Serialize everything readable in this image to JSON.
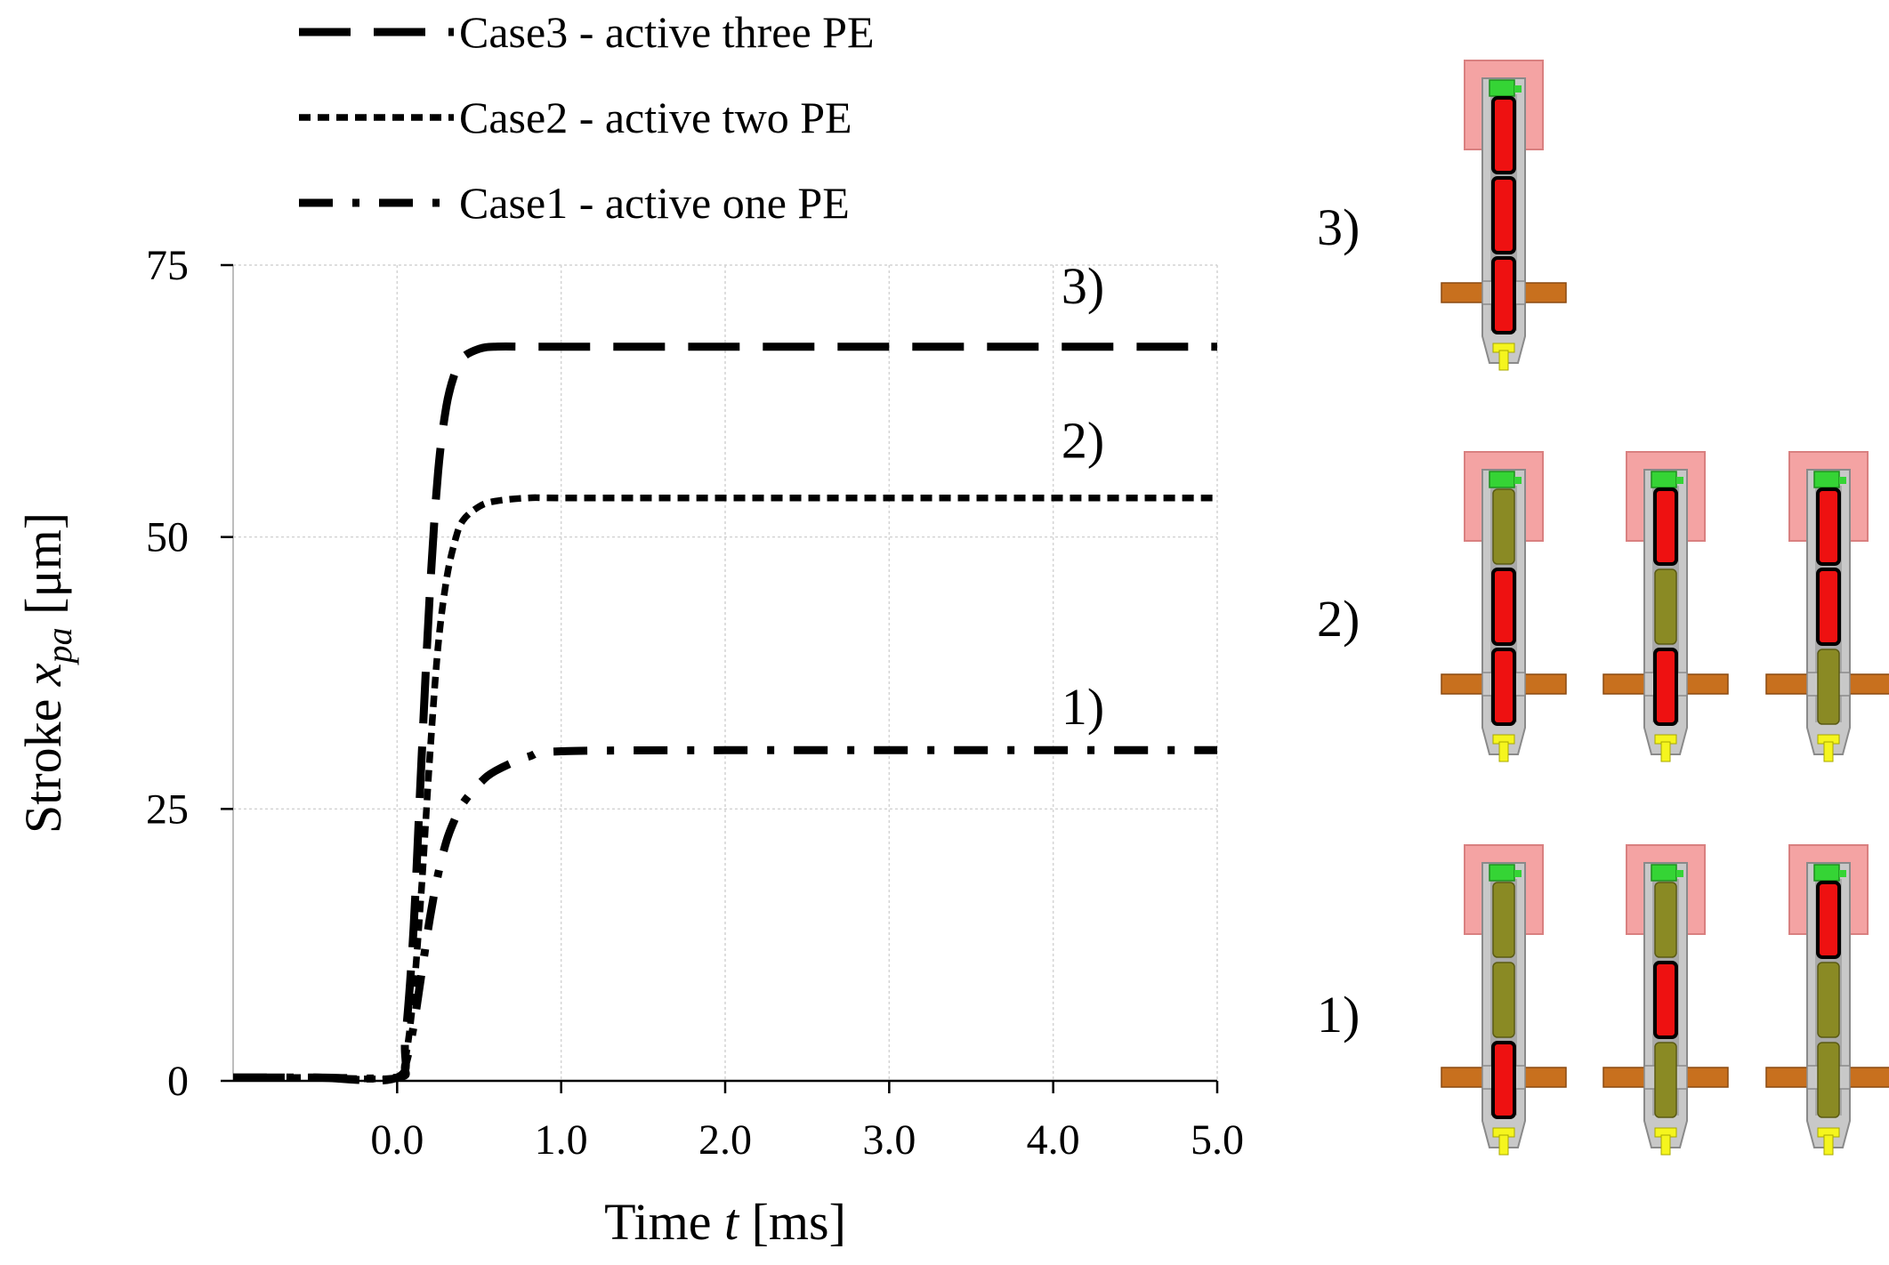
{
  "chart_data": {
    "type": "line",
    "title": "",
    "xlabel": "Time t [ms]",
    "ylabel": "Stroke x_pa [μm]",
    "xlabel_parts": [
      "Time ",
      "t",
      " [ms]"
    ],
    "ylabel_parts": [
      "Stroke ",
      "x",
      "pa",
      " [μm]"
    ],
    "xlim": [
      -1.0,
      5.0
    ],
    "ylim": [
      0,
      75
    ],
    "xticks": [
      {
        "value": 0.0,
        "label": "0.0"
      },
      {
        "value": 1.0,
        "label": "1.0"
      },
      {
        "value": 2.0,
        "label": "2.0"
      },
      {
        "value": 3.0,
        "label": "3.0"
      },
      {
        "value": 4.0,
        "label": "4.0"
      },
      {
        "value": 5.0,
        "label": "5.0"
      }
    ],
    "yticks": [
      {
        "value": 0,
        "label": "0"
      },
      {
        "value": 25,
        "label": "25"
      },
      {
        "value": 50,
        "label": "50"
      },
      {
        "value": 75,
        "label": "75"
      }
    ],
    "grid": true,
    "legend_position": "top",
    "series": [
      {
        "name": "Case3 - active three PE",
        "style": "long-dash",
        "curve_label": "3)",
        "label_at": [
          4.05,
          71.5
        ],
        "x": [
          -1.0,
          -0.5,
          0.0,
          0.05,
          0.1,
          0.15,
          0.2,
          0.25,
          0.3,
          0.35,
          0.4,
          0.5,
          0.6,
          0.8,
          1.0,
          2.0,
          3.0,
          4.0,
          5.0
        ],
        "y": [
          0.3,
          0.3,
          0.3,
          4,
          14,
          30,
          45,
          56,
          62,
          65,
          66.5,
          67.3,
          67.5,
          67.5,
          67.5,
          67.5,
          67.5,
          67.5,
          67.5
        ]
      },
      {
        "name": "Case2 - active two PE",
        "style": "short-dash",
        "curve_label": "2)",
        "label_at": [
          4.05,
          57.3
        ],
        "x": [
          -1.0,
          -0.5,
          0.0,
          0.05,
          0.1,
          0.15,
          0.2,
          0.25,
          0.3,
          0.35,
          0.4,
          0.5,
          0.6,
          0.8,
          1.0,
          2.0,
          3.0,
          4.0,
          5.0
        ],
        "y": [
          0.3,
          0.3,
          0.3,
          2,
          8,
          18,
          30,
          40,
          46,
          49.5,
          51.5,
          52.8,
          53.3,
          53.6,
          53.6,
          53.6,
          53.6,
          53.6,
          53.6
        ]
      },
      {
        "name": "Case1 - active one PE",
        "style": "dash-dot",
        "curve_label": "1)",
        "label_at": [
          4.05,
          32.8
        ],
        "x": [
          -1.0,
          -0.5,
          0.0,
          0.05,
          0.1,
          0.15,
          0.2,
          0.25,
          0.3,
          0.35,
          0.4,
          0.5,
          0.6,
          0.8,
          1.0,
          2.0,
          3.0,
          4.0,
          5.0
        ],
        "y": [
          0.3,
          0.3,
          0.3,
          1.5,
          5,
          10,
          15,
          19,
          22,
          24,
          25.5,
          27.3,
          28.5,
          29.8,
          30.3,
          30.4,
          30.4,
          30.4,
          30.4
        ]
      }
    ]
  },
  "side_panel": {
    "colors": {
      "body": "#c8c8c8",
      "body_edge": "#8a8a8a",
      "cap": "#f4a3a3",
      "cap_edge": "#d98080",
      "top": "#35d435",
      "stack": "#8a8a24",
      "active": "#ee1111",
      "flange": "#c8701e",
      "tip": "#f5f51e"
    },
    "groups": [
      {
        "label": "3)",
        "actuators": [
          [
            1,
            1,
            1
          ]
        ]
      },
      {
        "label": "2)",
        "actuators": [
          [
            0,
            1,
            1
          ],
          [
            1,
            0,
            1
          ],
          [
            1,
            1,
            0
          ]
        ]
      },
      {
        "label": "1)",
        "actuators": [
          [
            0,
            0,
            1
          ],
          [
            0,
            1,
            0
          ],
          [
            1,
            0,
            0
          ]
        ]
      }
    ]
  }
}
